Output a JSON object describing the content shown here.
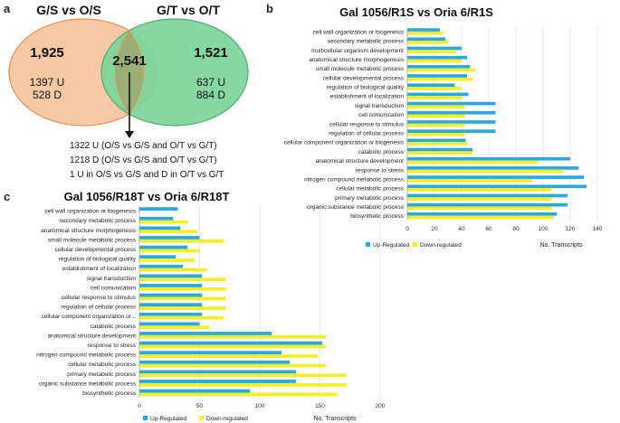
{
  "panels": {
    "a": "a",
    "b": "b",
    "c": "c"
  },
  "venn": {
    "left_title": "G/S vs O/S",
    "right_title": "G/T vs O/T",
    "left_count": "1,925",
    "left_up": "1397 U",
    "left_down": "528 D",
    "overlap_count": "2,541",
    "right_count": "1,521",
    "right_up": "637 U",
    "right_down": "884 D",
    "notes": [
      "1322 U (O/S vs G/S and O/T vs G/T)",
      "1218 D (O/S vs G/S and O/T vs G/T)",
      "1 U in O/S vs G/S and D in O/T vs G/T"
    ],
    "colors": {
      "left": "#f6c9a5",
      "left_edge": "#e89252",
      "right": "#7fd59c",
      "right_edge": "#4cae6c",
      "overlap": "#9bae78"
    }
  },
  "chart_data": [
    {
      "type": "bar",
      "orientation": "horizontal",
      "title": "Gal 1056/R1S  vs  Oria 6/R1S",
      "xlabel": "No. Transcripts",
      "xlim": [
        0,
        140
      ],
      "xticks": [
        0,
        20,
        40,
        60,
        80,
        100,
        120,
        140
      ],
      "legend": [
        "Up-Regulated",
        "Down-regulated"
      ],
      "colors": [
        "#2aa8df",
        "#f5ef2a"
      ],
      "categories": [
        "cell wall organization or biogenesis",
        "secondary metabolic process",
        "multicellular organism development",
        "anatomical structure morphogenesis",
        "small molecule metabolic process",
        "cellular developmental process",
        "regulation of biological quality",
        "establishment of localization",
        "signal transduction",
        "cell comunication",
        "cellular response to stimulus",
        "regulation of cellular process",
        "cellular component organization or biogenesis",
        "catabolic process",
        "anatomical structure development",
        "response to stress",
        "nitrogen compound metabolic process",
        "cellular metabolic process",
        "primary metabolic process",
        "organic substance metabolic process",
        "biosynthetic process"
      ],
      "series": [
        {
          "name": "Up-Regulated",
          "values": [
            24,
            28,
            40,
            44,
            46,
            44,
            35,
            45,
            65,
            65,
            65,
            65,
            43,
            48,
            120,
            126,
            130,
            132,
            118,
            118,
            110
          ]
        },
        {
          "name": "Down-regulated",
          "values": [
            26,
            30,
            36,
            40,
            50,
            48,
            40,
            40,
            42,
            42,
            42,
            42,
            44,
            48,
            96,
            115,
            92,
            106,
            106,
            106,
            108
          ]
        }
      ]
    },
    {
      "type": "bar",
      "orientation": "horizontal",
      "title": "Gal 1056/R18T  vs  Oria 6/R18T",
      "xlabel": "No. Transcripts",
      "xlim": [
        0,
        200
      ],
      "xticks": [
        0,
        50,
        100,
        150,
        200
      ],
      "legend": [
        "Up-Regulated",
        "Down-regulated"
      ],
      "colors": [
        "#2aa8df",
        "#f5ef2a"
      ],
      "categories": [
        "cell wall organization or biogenesis",
        "secondary metabolic process",
        "anatomical structure morphogenesis",
        "small molecule metabolic process",
        "cellular developmental process",
        "regulation of biological quality",
        "establishment of localization",
        "signal transduction",
        "cell comunication",
        "cellular response to stimulus",
        "regulation of cellular process",
        "cellular component organization or...",
        "catabolic process",
        "anatomical structure development",
        "response to stress",
        "nitrogen compound metabolic process",
        "cellular metabolic process",
        "primary metabolic process",
        "organic substance metabolic process",
        "biosynthetic process"
      ],
      "series": [
        {
          "name": "Up-Regulated",
          "values": [
            32,
            28,
            34,
            50,
            40,
            30,
            36,
            52,
            52,
            52,
            52,
            52,
            50,
            110,
            152,
            118,
            125,
            130,
            130,
            92
          ]
        },
        {
          "name": "Down-regulated",
          "values": [
            0,
            40,
            48,
            70,
            50,
            46,
            56,
            72,
            72,
            72,
            72,
            70,
            58,
            155,
            155,
            148,
            155,
            172,
            172,
            165
          ]
        }
      ]
    }
  ]
}
